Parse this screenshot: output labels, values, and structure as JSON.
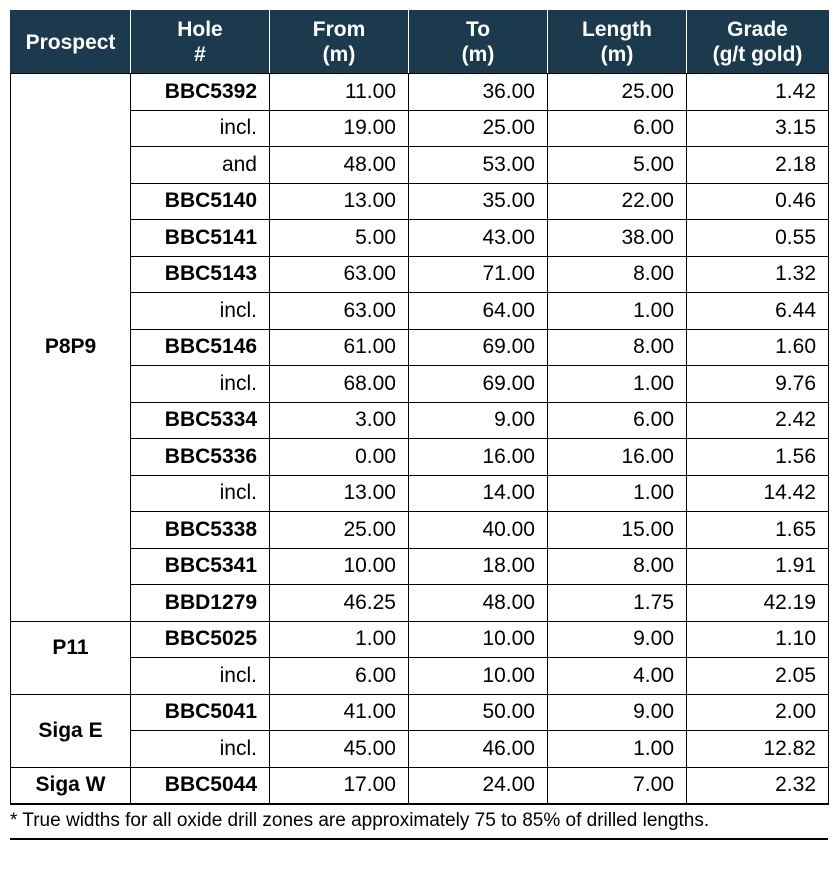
{
  "table": {
    "headers": [
      [
        "Prospect"
      ],
      [
        "Hole",
        "#"
      ],
      [
        "From",
        "(m)"
      ],
      [
        "To",
        "(m)"
      ],
      [
        "Length",
        "(m)"
      ],
      [
        "Grade",
        "(g/t gold)"
      ]
    ],
    "groups": [
      {
        "prospect": "P8P9",
        "rows": [
          {
            "hole": "BBC5392",
            "bold": true,
            "from": "11.00",
            "to": "36.00",
            "length": "25.00",
            "grade": "1.42"
          },
          {
            "hole": "incl.",
            "bold": false,
            "from": "19.00",
            "to": "25.00",
            "length": "6.00",
            "grade": "3.15"
          },
          {
            "hole": "and",
            "bold": false,
            "from": "48.00",
            "to": "53.00",
            "length": "5.00",
            "grade": "2.18"
          },
          {
            "hole": "BBC5140",
            "bold": true,
            "from": "13.00",
            "to": "35.00",
            "length": "22.00",
            "grade": "0.46"
          },
          {
            "hole": "BBC5141",
            "bold": true,
            "from": "5.00",
            "to": "43.00",
            "length": "38.00",
            "grade": "0.55"
          },
          {
            "hole": "BBC5143",
            "bold": true,
            "from": "63.00",
            "to": "71.00",
            "length": "8.00",
            "grade": "1.32"
          },
          {
            "hole": "incl.",
            "bold": false,
            "from": "63.00",
            "to": "64.00",
            "length": "1.00",
            "grade": "6.44"
          },
          {
            "hole": "BBC5146",
            "bold": true,
            "from": "61.00",
            "to": "69.00",
            "length": "8.00",
            "grade": "1.60"
          },
          {
            "hole": "incl.",
            "bold": false,
            "from": "68.00",
            "to": "69.00",
            "length": "1.00",
            "grade": "9.76"
          },
          {
            "hole": "BBC5334",
            "bold": true,
            "from": "3.00",
            "to": "9.00",
            "length": "6.00",
            "grade": "2.42"
          },
          {
            "hole": "BBC5336",
            "bold": true,
            "from": "0.00",
            "to": "16.00",
            "length": "16.00",
            "grade": "1.56"
          },
          {
            "hole": "incl.",
            "bold": false,
            "from": "13.00",
            "to": "14.00",
            "length": "1.00",
            "grade": "14.42"
          },
          {
            "hole": "BBC5338",
            "bold": true,
            "from": "25.00",
            "to": "40.00",
            "length": "15.00",
            "grade": "1.65"
          },
          {
            "hole": "BBC5341",
            "bold": true,
            "from": "10.00",
            "to": "18.00",
            "length": "8.00",
            "grade": "1.91"
          },
          {
            "hole": "BBD1279",
            "bold": true,
            "from": "46.25",
            "to": "48.00",
            "length": "1.75",
            "grade": "42.19"
          }
        ]
      },
      {
        "prospect": "P11",
        "rows": [
          {
            "hole": "BBC5025",
            "bold": true,
            "from": "1.00",
            "to": "10.00",
            "length": "9.00",
            "grade": "1.10"
          },
          {
            "hole": "incl.",
            "bold": false,
            "from": "6.00",
            "to": "10.00",
            "length": "4.00",
            "grade": "2.05"
          }
        ]
      },
      {
        "prospect": "Siga E",
        "rows": [
          {
            "hole": "BBC5041",
            "bold": true,
            "from": "41.00",
            "to": "50.00",
            "length": "9.00",
            "grade": "2.00"
          },
          {
            "hole": "incl.",
            "bold": false,
            "from": "45.00",
            "to": "46.00",
            "length": "1.00",
            "grade": "12.82"
          }
        ]
      },
      {
        "prospect": "Siga W",
        "rows": [
          {
            "hole": "BBC5044",
            "bold": true,
            "from": "17.00",
            "to": "24.00",
            "length": "7.00",
            "grade": "2.32"
          }
        ]
      }
    ]
  },
  "footnote": "* True widths for all oxide drill zones are approximately 75 to 85% of drilled lengths.",
  "colors": {
    "header_bg": "#1b3a4e",
    "header_text": "#ffffff"
  }
}
